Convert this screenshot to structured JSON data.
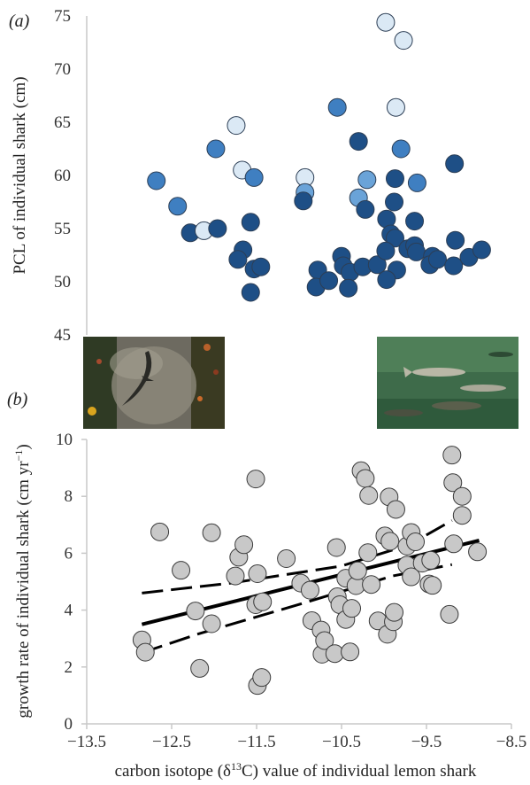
{
  "chart_data": [
    {
      "panel_label": "(a)",
      "type": "scatter",
      "ylabel": "PCL of individual shark (cm)",
      "ylim": [
        45,
        75
      ],
      "yticks": [
        "45",
        "50",
        "55",
        "60",
        "65",
        "70",
        "75"
      ],
      "xlim": [
        -13.5,
        -8.5
      ],
      "grid": false,
      "legend": "none",
      "points": [
        {
          "x": -12.68,
          "y": 59.5,
          "color": "#3f7fc1"
        },
        {
          "x": -12.43,
          "y": 57.1,
          "color": "#3f7fc1"
        },
        {
          "x": -12.28,
          "y": 54.6,
          "color": "#1e4f86"
        },
        {
          "x": -12.12,
          "y": 54.8,
          "color": "#dbe9f5"
        },
        {
          "x": -11.96,
          "y": 55.0,
          "color": "#1e4f86"
        },
        {
          "x": -11.98,
          "y": 62.5,
          "color": "#3f7fc1"
        },
        {
          "x": -11.74,
          "y": 64.7,
          "color": "#dbe9f5"
        },
        {
          "x": -11.67,
          "y": 60.5,
          "color": "#dbe9f5"
        },
        {
          "x": -11.53,
          "y": 59.8,
          "color": "#3f7fc1"
        },
        {
          "x": -11.57,
          "y": 55.6,
          "color": "#1e4f86"
        },
        {
          "x": -11.66,
          "y": 53.0,
          "color": "#1e4f86"
        },
        {
          "x": -11.72,
          "y": 52.1,
          "color": "#1e4f86"
        },
        {
          "x": -11.53,
          "y": 51.2,
          "color": "#1e4f86"
        },
        {
          "x": -11.45,
          "y": 51.4,
          "color": "#1e4f86"
        },
        {
          "x": -11.57,
          "y": 49.0,
          "color": "#1e4f86"
        },
        {
          "x": -10.93,
          "y": 59.8,
          "color": "#dbe9f5"
        },
        {
          "x": -10.93,
          "y": 58.4,
          "color": "#6aa3d8"
        },
        {
          "x": -10.95,
          "y": 57.6,
          "color": "#1e4f86"
        },
        {
          "x": -10.55,
          "y": 66.4,
          "color": "#3f7fc1"
        },
        {
          "x": -10.78,
          "y": 51.1,
          "color": "#1e4f86"
        },
        {
          "x": -10.8,
          "y": 49.5,
          "color": "#1e4f86"
        },
        {
          "x": -10.65,
          "y": 50.1,
          "color": "#1e4f86"
        },
        {
          "x": -10.5,
          "y": 52.4,
          "color": "#1e4f86"
        },
        {
          "x": -10.48,
          "y": 51.5,
          "color": "#1e4f86"
        },
        {
          "x": -10.4,
          "y": 50.9,
          "color": "#1e4f86"
        },
        {
          "x": -10.42,
          "y": 49.4,
          "color": "#1e4f86"
        },
        {
          "x": -10.3,
          "y": 63.2,
          "color": "#1e4f86"
        },
        {
          "x": -10.2,
          "y": 59.6,
          "color": "#6aa3d8"
        },
        {
          "x": -10.3,
          "y": 57.9,
          "color": "#6aa3d8"
        },
        {
          "x": -10.22,
          "y": 56.8,
          "color": "#1e4f86"
        },
        {
          "x": -10.25,
          "y": 51.4,
          "color": "#1e4f86"
        },
        {
          "x": -10.08,
          "y": 51.6,
          "color": "#1e4f86"
        },
        {
          "x": -9.98,
          "y": 74.4,
          "color": "#dbe9f5"
        },
        {
          "x": -9.77,
          "y": 72.7,
          "color": "#dbe9f5"
        },
        {
          "x": -9.86,
          "y": 66.4,
          "color": "#dbe9f5"
        },
        {
          "x": -9.8,
          "y": 62.5,
          "color": "#3f7fc1"
        },
        {
          "x": -9.87,
          "y": 59.7,
          "color": "#1e4f86"
        },
        {
          "x": -9.61,
          "y": 59.3,
          "color": "#3f7fc1"
        },
        {
          "x": -9.88,
          "y": 57.5,
          "color": "#1e4f86"
        },
        {
          "x": -9.97,
          "y": 55.9,
          "color": "#1e4f86"
        },
        {
          "x": -9.64,
          "y": 55.7,
          "color": "#1e4f86"
        },
        {
          "x": -9.92,
          "y": 54.5,
          "color": "#1e4f86"
        },
        {
          "x": -9.87,
          "y": 54.1,
          "color": "#1e4f86"
        },
        {
          "x": -9.72,
          "y": 53.1,
          "color": "#1e4f86"
        },
        {
          "x": -9.64,
          "y": 53.4,
          "color": "#1e4f86"
        },
        {
          "x": -9.62,
          "y": 52.8,
          "color": "#1e4f86"
        },
        {
          "x": -9.98,
          "y": 52.9,
          "color": "#1e4f86"
        },
        {
          "x": -9.85,
          "y": 51.1,
          "color": "#1e4f86"
        },
        {
          "x": -9.97,
          "y": 50.2,
          "color": "#1e4f86"
        },
        {
          "x": -9.43,
          "y": 52.4,
          "color": "#1e4f86"
        },
        {
          "x": -9.46,
          "y": 51.6,
          "color": "#1e4f86"
        },
        {
          "x": -9.37,
          "y": 52.1,
          "color": "#1e4f86"
        },
        {
          "x": -9.17,
          "y": 61.1,
          "color": "#1e4f86"
        },
        {
          "x": -9.16,
          "y": 53.9,
          "color": "#1e4f86"
        },
        {
          "x": -9.18,
          "y": 51.5,
          "color": "#1e4f86"
        },
        {
          "x": -9.0,
          "y": 52.3,
          "color": "#1e4f86"
        },
        {
          "x": -8.85,
          "y": 53.0,
          "color": "#1e4f86"
        }
      ]
    },
    {
      "panel_label": "(b)",
      "type": "scatter",
      "xlabel_parts": [
        "carbon isotope (δ",
        "13",
        "C) value of individual lemon shark"
      ],
      "ylabel_parts": [
        "growth rate of individual shark (cm yr",
        "−1",
        ")"
      ],
      "xlim": [
        -13.5,
        -8.5
      ],
      "ylim": [
        0,
        10
      ],
      "xticks": [
        "−13.5",
        "−12.5",
        "−11.5",
        "−10.5",
        "−9.5",
        "−8.5"
      ],
      "yticks": [
        "0",
        "2",
        "4",
        "6",
        "8",
        "10"
      ],
      "grid": false,
      "legend": "none",
      "point_color": "#c8c8c8",
      "regression": {
        "x": [
          -12.85,
          -8.88
        ],
        "y": [
          3.5,
          6.45
        ]
      },
      "ci_upper": {
        "x": [
          -12.85,
          -11.8,
          -10.5,
          -9.7,
          -9.2
        ],
        "y": [
          4.6,
          4.95,
          5.55,
          6.3,
          7.15
        ]
      },
      "ci_lower": {
        "x": [
          -12.85,
          -12.2,
          -11.0,
          -9.9,
          -9.2
        ],
        "y": [
          2.5,
          3.15,
          4.2,
          5.2,
          5.6
        ]
      },
      "points": [
        {
          "x": -12.85,
          "y": 2.95
        },
        {
          "x": -12.81,
          "y": 2.52
        },
        {
          "x": -12.64,
          "y": 6.75
        },
        {
          "x": -12.39,
          "y": 5.4
        },
        {
          "x": -12.22,
          "y": 3.97
        },
        {
          "x": -12.17,
          "y": 1.95
        },
        {
          "x": -12.03,
          "y": 3.52
        },
        {
          "x": -12.03,
          "y": 6.72
        },
        {
          "x": -11.75,
          "y": 5.2
        },
        {
          "x": -11.71,
          "y": 5.86
        },
        {
          "x": -11.65,
          "y": 6.3
        },
        {
          "x": -11.51,
          "y": 8.61
        },
        {
          "x": -11.51,
          "y": 4.19
        },
        {
          "x": -11.49,
          "y": 5.28
        },
        {
          "x": -11.49,
          "y": 1.35
        },
        {
          "x": -11.44,
          "y": 1.63
        },
        {
          "x": -11.43,
          "y": 4.29
        },
        {
          "x": -11.15,
          "y": 5.81
        },
        {
          "x": -10.98,
          "y": 4.95
        },
        {
          "x": -10.87,
          "y": 4.7
        },
        {
          "x": -10.85,
          "y": 3.63
        },
        {
          "x": -10.74,
          "y": 3.3
        },
        {
          "x": -10.73,
          "y": 2.45
        },
        {
          "x": -10.7,
          "y": 2.93
        },
        {
          "x": -10.58,
          "y": 2.47
        },
        {
          "x": -10.56,
          "y": 6.2
        },
        {
          "x": -10.55,
          "y": 4.47
        },
        {
          "x": -10.52,
          "y": 4.19
        },
        {
          "x": -10.45,
          "y": 5.12
        },
        {
          "x": -10.45,
          "y": 3.67
        },
        {
          "x": -10.4,
          "y": 2.53
        },
        {
          "x": -10.38,
          "y": 4.06
        },
        {
          "x": -10.33,
          "y": 4.86
        },
        {
          "x": -10.31,
          "y": 5.38
        },
        {
          "x": -10.27,
          "y": 8.9
        },
        {
          "x": -10.22,
          "y": 8.63
        },
        {
          "x": -10.19,
          "y": 6.02
        },
        {
          "x": -10.18,
          "y": 8.03
        },
        {
          "x": -10.15,
          "y": 4.9
        },
        {
          "x": -10.07,
          "y": 3.62
        },
        {
          "x": -9.99,
          "y": 6.61
        },
        {
          "x": -9.96,
          "y": 3.15
        },
        {
          "x": -9.94,
          "y": 7.98
        },
        {
          "x": -9.93,
          "y": 6.42
        },
        {
          "x": -9.89,
          "y": 3.59
        },
        {
          "x": -9.88,
          "y": 3.92
        },
        {
          "x": -9.86,
          "y": 7.54
        },
        {
          "x": -9.73,
          "y": 6.25
        },
        {
          "x": -9.73,
          "y": 5.58
        },
        {
          "x": -9.68,
          "y": 6.73
        },
        {
          "x": -9.68,
          "y": 5.17
        },
        {
          "x": -9.63,
          "y": 6.4
        },
        {
          "x": -9.55,
          "y": 5.65
        },
        {
          "x": -9.47,
          "y": 4.92
        },
        {
          "x": -9.45,
          "y": 5.75
        },
        {
          "x": -9.43,
          "y": 4.87
        },
        {
          "x": -9.23,
          "y": 3.85
        },
        {
          "x": -9.2,
          "y": 9.45
        },
        {
          "x": -9.19,
          "y": 8.48
        },
        {
          "x": -9.18,
          "y": 6.33
        },
        {
          "x": -9.08,
          "y": 8.0
        },
        {
          "x": -9.08,
          "y": 7.33
        },
        {
          "x": -8.9,
          "y": 6.05
        }
      ]
    }
  ]
}
